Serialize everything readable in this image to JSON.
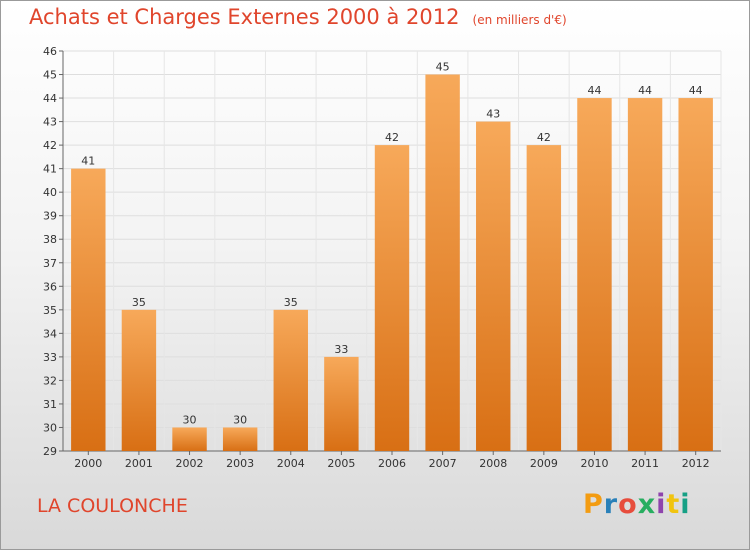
{
  "header": {
    "title": "Achats et Charges Externes 2000 à 2012",
    "unit": "(en milliers d'€)"
  },
  "footer": {
    "commune": "LA COULONCHE",
    "logo_letters": [
      "P",
      "r",
      "o",
      "x",
      "i",
      "t",
      "i"
    ],
    "logo_colors": [
      "#f39c12",
      "#2980b9",
      "#e74c3c",
      "#27ae60",
      "#8e44ad",
      "#f1c40f",
      "#16a085"
    ]
  },
  "colors": {
    "bar_top": "#f7a95a",
    "bar_bottom": "#d86f14",
    "accent": "#e0452c"
  },
  "chart_data": {
    "type": "bar",
    "title": "Achats et Charges Externes 2000 à 2012",
    "ylabel": "en milliers d'€",
    "xlabel": "",
    "categories": [
      "2000",
      "2001",
      "2002",
      "2003",
      "2004",
      "2005",
      "2006",
      "2007",
      "2008",
      "2009",
      "2010",
      "2011",
      "2012"
    ],
    "values": [
      41,
      35,
      30,
      30,
      35,
      33,
      42,
      45,
      43,
      42,
      44,
      44,
      44
    ],
    "ylim": [
      29,
      46
    ],
    "yticks": [
      29,
      30,
      31,
      32,
      33,
      34,
      35,
      36,
      37,
      38,
      39,
      40,
      41,
      42,
      43,
      44,
      45,
      46
    ],
    "grid": true
  }
}
